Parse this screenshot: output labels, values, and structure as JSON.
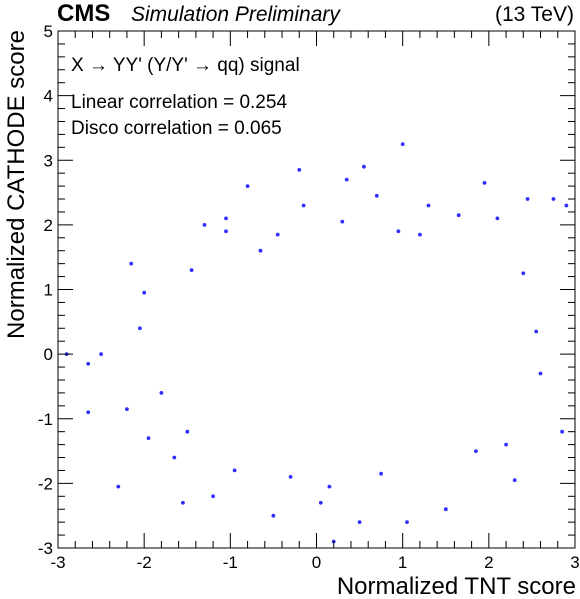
{
  "header": {
    "experiment": "CMS",
    "status": "Simulation Preliminary",
    "energy": "(13 TeV)"
  },
  "colors": {
    "points": "#2f2fff",
    "axes": "#000000",
    "background": "#ffffff"
  },
  "chart_data": {
    "type": "scatter",
    "xlabel": "Normalized TNT score",
    "ylabel": "Normalized CATHODE score",
    "xlim": [
      -3,
      3
    ],
    "ylim": [
      -3,
      5
    ],
    "xticks": [
      -3,
      -2,
      -1,
      0,
      1,
      2,
      3
    ],
    "yticks": [
      -3,
      -2,
      -1,
      0,
      1,
      2,
      3,
      4,
      5
    ],
    "grid": false,
    "legend": "none",
    "annotations": [
      "X → YY' (Y/Y' → qq) signal",
      "Linear correlation = 0.254",
      "Disco correlation = 0.065"
    ],
    "series": [
      {
        "points": [
          [
            -2.9,
            0.0
          ],
          [
            -2.65,
            -0.15
          ],
          [
            -2.5,
            0.0
          ],
          [
            -2.3,
            -2.05
          ],
          [
            -2.2,
            -0.85
          ],
          [
            -2.0,
            0.95
          ],
          [
            -2.15,
            1.4
          ],
          [
            -1.95,
            -1.3
          ],
          [
            -1.8,
            -0.6
          ],
          [
            -1.55,
            -2.3
          ],
          [
            -1.5,
            -1.2
          ],
          [
            -1.3,
            2.0
          ],
          [
            -1.2,
            -2.2
          ],
          [
            -1.45,
            1.3
          ],
          [
            -1.05,
            2.1
          ],
          [
            -0.8,
            2.6
          ],
          [
            -0.5,
            -2.5
          ],
          [
            -0.2,
            2.85
          ],
          [
            0.05,
            -2.3
          ],
          [
            0.2,
            -2.9
          ],
          [
            0.35,
            2.7
          ],
          [
            0.5,
            -2.6
          ],
          [
            0.7,
            2.45
          ],
          [
            1.0,
            3.25
          ],
          [
            1.05,
            -2.6
          ],
          [
            1.3,
            2.3
          ],
          [
            1.65,
            2.15
          ],
          [
            1.95,
            2.65
          ],
          [
            2.2,
            -1.4
          ],
          [
            2.45,
            2.4
          ],
          [
            2.75,
            2.4
          ],
          [
            2.9,
            2.3
          ],
          [
            2.85,
            -1.2
          ],
          [
            2.6,
            -0.3
          ],
          [
            2.4,
            1.25
          ],
          [
            2.1,
            2.1
          ],
          [
            1.5,
            -2.4
          ],
          [
            -0.15,
            2.3
          ],
          [
            0.55,
            2.9
          ],
          [
            -1.05,
            1.9
          ],
          [
            -2.65,
            -0.9
          ],
          [
            2.3,
            -1.95
          ],
          [
            0.75,
            -1.85
          ],
          [
            -0.3,
            -1.9
          ],
          [
            1.2,
            1.85
          ],
          [
            0.95,
            1.9
          ],
          [
            -0.65,
            1.6
          ],
          [
            -0.95,
            -1.8
          ],
          [
            -1.65,
            -1.6
          ],
          [
            1.85,
            -1.5
          ],
          [
            -2.05,
            0.4
          ],
          [
            2.55,
            0.35
          ],
          [
            0.15,
            -2.05
          ],
          [
            -0.45,
            1.85
          ],
          [
            0.3,
            2.05
          ]
        ]
      }
    ]
  }
}
